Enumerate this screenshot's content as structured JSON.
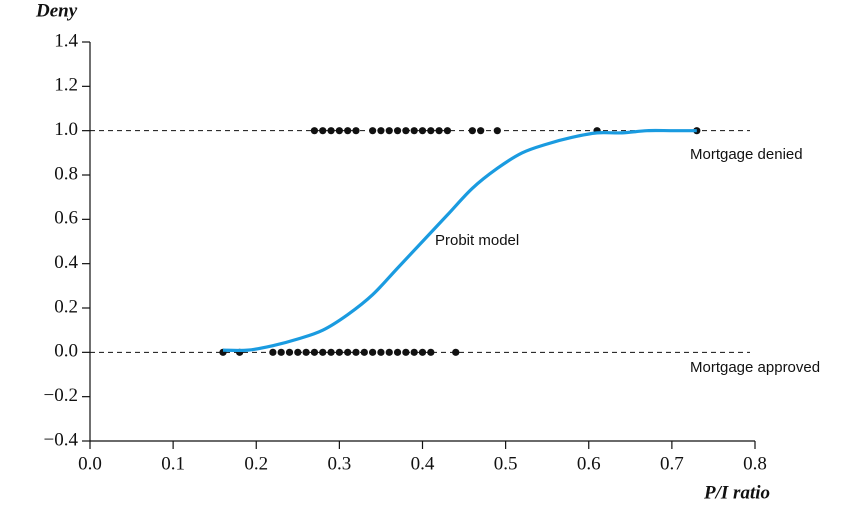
{
  "chart_data": {
    "type": "scatter",
    "y_label": "Deny",
    "x_label": "P/I ratio",
    "xlim": [
      0,
      0.8
    ],
    "ylim": [
      -0.4,
      1.4
    ],
    "xticks": [
      {
        "value": 0,
        "label": "0.0"
      },
      {
        "value": 0.1,
        "label": "0.1"
      },
      {
        "value": 0.2,
        "label": "0.2"
      },
      {
        "value": 0.3,
        "label": "0.3"
      },
      {
        "value": 0.4,
        "label": "0.4"
      },
      {
        "value": 0.5,
        "label": "0.5"
      },
      {
        "value": 0.6,
        "label": "0.6"
      },
      {
        "value": 0.7,
        "label": "0.7"
      },
      {
        "value": 0.8,
        "label": "0.8"
      }
    ],
    "yticks": [
      {
        "value": -0.4,
        "label": "−0.4"
      },
      {
        "value": -0.2,
        "label": "−0.2"
      },
      {
        "value": 0,
        "label": "0.0"
      },
      {
        "value": 0.2,
        "label": "0.2"
      },
      {
        "value": 0.4,
        "label": "0.4"
      },
      {
        "value": 0.6,
        "label": "0.6"
      },
      {
        "value": 0.8,
        "label": "0.8"
      },
      {
        "value": 1,
        "label": "1.0"
      },
      {
        "value": 1.2,
        "label": "1.2"
      },
      {
        "value": 1.4,
        "label": "1.4"
      }
    ],
    "hlines": [
      0,
      1
    ],
    "points": {
      "color": "#111111",
      "x": [
        0.27,
        0.28,
        0.29,
        0.3,
        0.31,
        0.32,
        0.34,
        0.35,
        0.36,
        0.37,
        0.38,
        0.39,
        0.4,
        0.41,
        0.42,
        0.43,
        0.46,
        0.47,
        0.49,
        0.61,
        0.73,
        0.16,
        0.18,
        0.22,
        0.23,
        0.24,
        0.25,
        0.26,
        0.27,
        0.28,
        0.29,
        0.3,
        0.31,
        0.32,
        0.33,
        0.34,
        0.35,
        0.36,
        0.37,
        0.38,
        0.39,
        0.4,
        0.41,
        0.44
      ],
      "y": [
        1,
        1,
        1,
        1,
        1,
        1,
        1,
        1,
        1,
        1,
        1,
        1,
        1,
        1,
        1,
        1,
        1,
        1,
        1,
        1,
        1,
        0,
        0,
        0,
        0,
        0,
        0,
        0,
        0,
        0,
        0,
        0,
        0,
        0,
        0,
        0,
        0,
        0,
        0,
        0,
        0,
        0,
        0,
        0
      ]
    },
    "curve": {
      "color": "#1a9be0",
      "x": [
        0.16,
        0.19,
        0.22,
        0.25,
        0.28,
        0.31,
        0.34,
        0.37,
        0.4,
        0.43,
        0.46,
        0.49,
        0.52,
        0.55,
        0.58,
        0.61,
        0.64,
        0.67,
        0.7,
        0.73
      ],
      "values": [
        0.01,
        0.01,
        0.03,
        0.06,
        0.1,
        0.17,
        0.26,
        0.38,
        0.5,
        0.62,
        0.74,
        0.83,
        0.9,
        0.94,
        0.97,
        0.99,
        0.99,
        1.0,
        1.0,
        1.0
      ]
    },
    "annotations": [
      "Probit model",
      "Mortgage denied",
      "Mortgage approved"
    ]
  }
}
